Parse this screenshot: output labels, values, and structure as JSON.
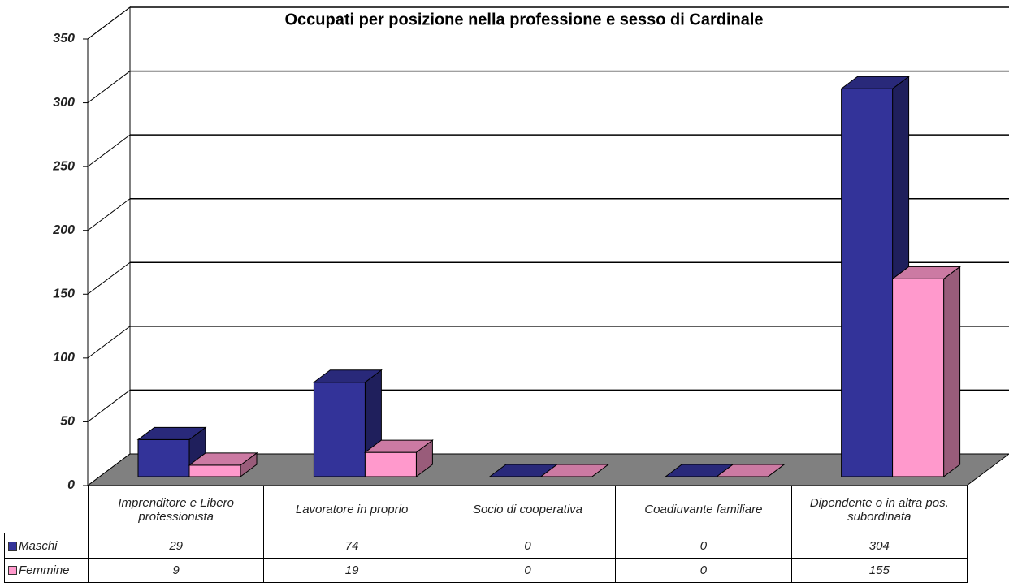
{
  "chart_data": {
    "type": "bar3d",
    "title": "Occupati per posizione nella professione e sesso di Cardinale",
    "categories": [
      "Imprenditore e Libero professionista",
      "Lavoratore in proprio",
      "Socio di cooperativa",
      "Coadiuvante familiare",
      "Dipendente o in altra pos. subordinata"
    ],
    "series": [
      {
        "name": "Maschi",
        "color": "#333399",
        "values": [
          29,
          74,
          0,
          0,
          304
        ]
      },
      {
        "name": "Femmine",
        "color": "#ff99cc",
        "values": [
          9,
          19,
          0,
          0,
          155
        ]
      }
    ],
    "ylim": [
      0,
      350
    ],
    "yticks": [
      0,
      50,
      100,
      150,
      200,
      250,
      300,
      350
    ],
    "grid": true
  }
}
